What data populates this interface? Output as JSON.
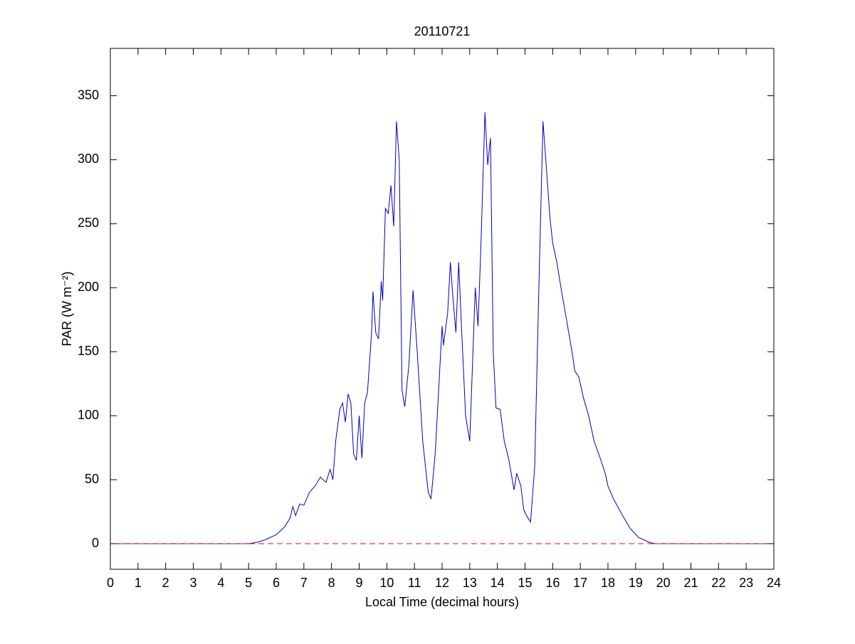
{
  "chart_data": {
    "type": "line",
    "title": "20110721",
    "xlabel": "Local Time (decimal hours)",
    "ylabel": "PAR (W m⁻²)",
    "xlim": [
      0,
      24
    ],
    "ylim": [
      -20,
      387
    ],
    "xticks": [
      0,
      1,
      2,
      3,
      4,
      5,
      6,
      7,
      8,
      9,
      10,
      11,
      12,
      13,
      14,
      15,
      16,
      17,
      18,
      19,
      20,
      21,
      22,
      23,
      24
    ],
    "yticks": [
      0,
      50,
      100,
      150,
      200,
      250,
      300,
      350
    ],
    "series": [
      {
        "color": "#0000c0",
        "style": "solid",
        "x": [
          0,
          5,
          5.3,
          5.6,
          6,
          6.3,
          6.5,
          6.6,
          6.7,
          6.85,
          7,
          7.2,
          7.4,
          7.6,
          7.8,
          7.95,
          8.05,
          8.15,
          8.3,
          8.4,
          8.5,
          8.6,
          8.7,
          8.8,
          8.9,
          9.0,
          9.1,
          9.2,
          9.3,
          9.45,
          9.5,
          9.6,
          9.7,
          9.8,
          9.85,
          9.95,
          10.05,
          10.15,
          10.25,
          10.35,
          10.45,
          10.55,
          10.65,
          10.8,
          10.95,
          11.1,
          11.3,
          11.5,
          11.6,
          11.75,
          11.9,
          12.0,
          12.05,
          12.2,
          12.3,
          12.4,
          12.5,
          12.6,
          12.7,
          12.85,
          13.0,
          13.15,
          13.2,
          13.3,
          13.4,
          13.55,
          13.65,
          13.75,
          13.85,
          13.95,
          14.1,
          14.25,
          14.4,
          14.5,
          14.6,
          14.7,
          14.85,
          14.95,
          15.05,
          15.2,
          15.35,
          15.5,
          15.65,
          15.75,
          15.9,
          16.0,
          16.15,
          16.3,
          16.5,
          16.7,
          16.8,
          16.95,
          17.1,
          17.3,
          17.5,
          17.7,
          17.9,
          18.0,
          18.2,
          18.5,
          18.8,
          19.1,
          19.5,
          19.7,
          24
        ],
        "values": [
          0,
          0,
          1,
          3,
          7,
          13,
          20,
          29,
          22,
          31,
          30,
          40,
          45,
          52,
          48,
          58,
          50,
          80,
          105,
          110,
          95,
          117,
          110,
          70,
          65,
          100,
          67,
          110,
          118,
          165,
          197,
          165,
          160,
          205,
          190,
          262,
          258,
          280,
          248,
          330,
          300,
          120,
          107,
          140,
          198,
          150,
          80,
          40,
          35,
          70,
          130,
          170,
          155,
          180,
          220,
          190,
          165,
          220,
          170,
          100,
          80,
          170,
          200,
          170,
          230,
          337,
          296,
          317,
          150,
          106,
          105,
          80,
          67,
          55,
          42,
          55,
          45,
          27,
          22,
          17,
          60,
          200,
          330,
          300,
          255,
          235,
          220,
          200,
          175,
          150,
          135,
          130,
          115,
          100,
          80,
          68,
          55,
          45,
          35,
          23,
          12,
          5,
          1,
          0,
          0
        ]
      },
      {
        "color": "#ff0000",
        "style": "dashed",
        "x": [
          0,
          24
        ],
        "values": [
          0,
          0
        ]
      }
    ]
  }
}
